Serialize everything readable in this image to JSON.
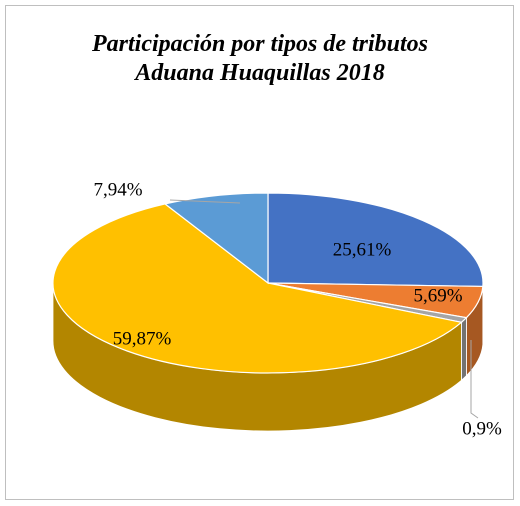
{
  "chart_data": {
    "type": "pie",
    "title": "Participación por tipos de tributos Aduana Huaquillas 2018",
    "categories": [
      null,
      null,
      null,
      null,
      null
    ],
    "values": [
      25.61,
      5.69,
      0.9,
      59.87,
      7.94
    ],
    "value_labels": [
      "25,61%",
      "5,69%",
      "0,9%",
      "59,87%",
      "7,94%"
    ],
    "colors": [
      "#4472c4",
      "#ed7d31",
      "#a5a5a5",
      "#ffc000",
      "#5b9bd5"
    ]
  }
}
